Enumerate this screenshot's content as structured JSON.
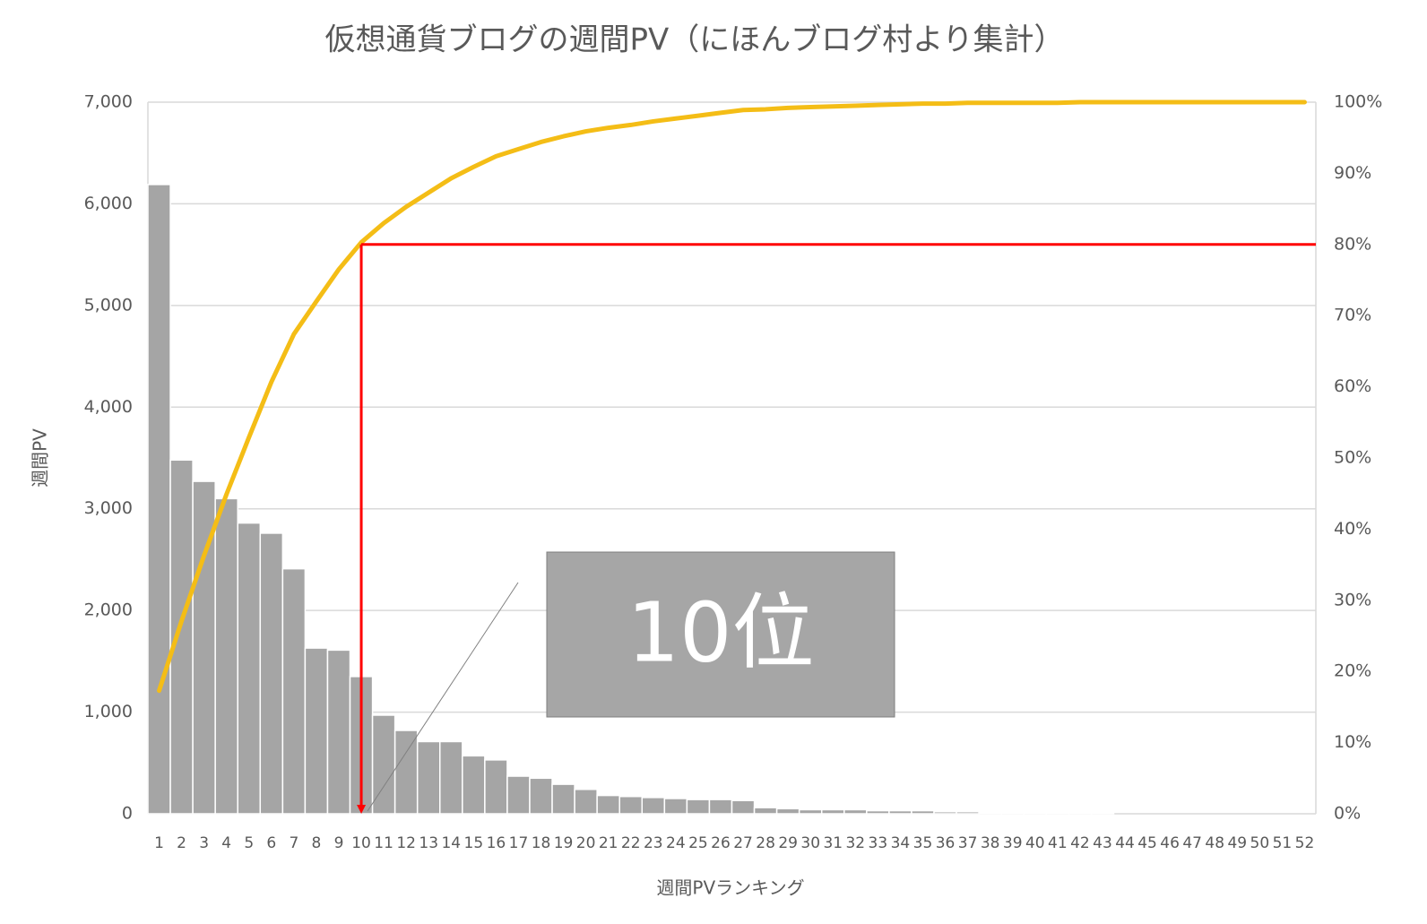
{
  "chart_data": {
    "type": "combo",
    "title": "仮想通貨ブログの週間PV（にほんブログ村より集計）",
    "y_label": "週間PV",
    "x_label": "週間PVランキング",
    "categories": [
      "1",
      "2",
      "3",
      "4",
      "5",
      "6",
      "7",
      "8",
      "9",
      "10",
      "11",
      "12",
      "13",
      "14",
      "15",
      "16",
      "17",
      "18",
      "19",
      "20",
      "21",
      "22",
      "23",
      "24",
      "25",
      "26",
      "27",
      "28",
      "29",
      "30",
      "31",
      "32",
      "33",
      "34",
      "35",
      "36",
      "37",
      "38",
      "39",
      "40",
      "41",
      "42",
      "43",
      "44",
      "45",
      "46",
      "47",
      "48",
      "49",
      "50",
      "51",
      "52"
    ],
    "series": [
      {
        "type": "bar",
        "color": "#a5a5a5",
        "values": [
          6190,
          3480,
          3270,
          3100,
          2860,
          2760,
          2410,
          1630,
          1610,
          1350,
          970,
          820,
          710,
          710,
          570,
          530,
          370,
          350,
          290,
          240,
          180,
          170,
          160,
          150,
          140,
          140,
          130,
          60,
          50,
          40,
          40,
          40,
          30,
          30,
          30,
          20,
          20,
          10,
          5,
          5,
          5,
          5,
          5,
          0,
          0,
          0,
          0,
          0,
          0,
          0,
          0,
          0
        ]
      },
      {
        "type": "line",
        "axis": "y2",
        "color": "#f4bd16",
        "values": [
          17.3,
          27.1,
          36.3,
          44.9,
          52.9,
          60.7,
          67.4,
          72.0,
          76.5,
          80.3,
          83.0,
          85.3,
          87.3,
          89.3,
          90.9,
          92.4,
          93.4,
          94.4,
          95.2,
          95.9,
          96.4,
          96.8,
          97.3,
          97.7,
          98.1,
          98.5,
          98.9,
          99.0,
          99.2,
          99.3,
          99.4,
          99.5,
          99.6,
          99.7,
          99.8,
          99.8,
          99.9,
          99.9,
          99.9,
          99.9,
          99.9,
          100,
          100,
          100,
          100,
          100,
          100,
          100,
          100,
          100,
          100,
          100
        ]
      }
    ],
    "ylim": [
      0,
      7000
    ],
    "yticks": [
      0,
      {
        "value": 1000,
        "label": "1,000"
      },
      {
        "value": 2000,
        "label": "2,000"
      },
      {
        "value": 3000,
        "label": "3,000"
      },
      {
        "value": 4000,
        "label": "4,000"
      },
      {
        "value": 5000,
        "label": "5,000"
      },
      {
        "value": 6000,
        "label": "6,000"
      },
      {
        "value": 7000,
        "label": "7,000"
      }
    ],
    "y2lim": [
      0,
      100
    ],
    "y2ticks": [
      {
        "value": 0,
        "label": "0%"
      },
      {
        "value": 10,
        "label": "10%"
      },
      {
        "value": 20,
        "label": "20%"
      },
      {
        "value": 30,
        "label": "30%"
      },
      {
        "value": 40,
        "label": "40%"
      },
      {
        "value": 50,
        "label": "50%"
      },
      {
        "value": 60,
        "label": "60%"
      },
      {
        "value": 70,
        "label": "70%"
      },
      {
        "value": 80,
        "label": "80%"
      },
      {
        "value": 90,
        "label": "90%"
      },
      {
        "value": 100,
        "label": "100%"
      }
    ],
    "grid": true,
    "highlight": {
      "category": "10",
      "y2_value": 80,
      "color": "#ff0000"
    },
    "annotation": {
      "text": "10位"
    }
  }
}
